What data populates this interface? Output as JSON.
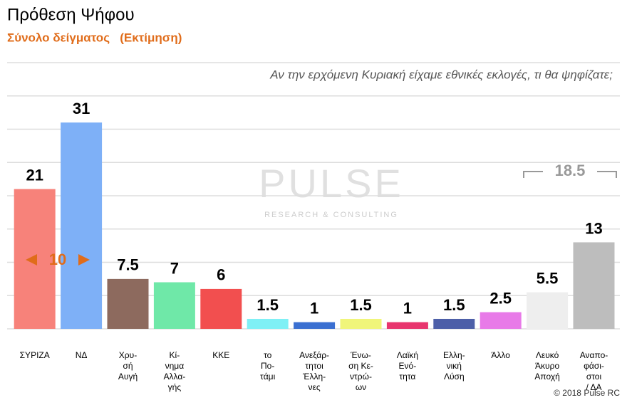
{
  "chart_data": {
    "type": "bar",
    "title": "Πρόθεση Ψήφου",
    "subtitle": "Σύνολο δείγματος   (Εκτίμηση)",
    "question": "Αν την ερχόμενη Κυριακή είχαμε εθνικές εκλογές, τι θα ψηφίζατε;",
    "categories": [
      "ΣΥΡΙΖΑ",
      "ΝΔ",
      "Χρυ-\nσή\nΑυγή",
      "Κί-\nνημα\nΑλλα-\nγής",
      "ΚΚΕ",
      "το\nΠο-\nτάμι",
      "Ανεξάρ-\nτητοι\nΈλλη-\nνες",
      "Ένω-\nση Κε-\nντρώ-\nων",
      "Λαϊκή\nΕνό-\nτητα",
      "Ελλη-\nνική\nΛύση",
      "Άλλο",
      "Λευκό\nΆκυρο\nΑποχή",
      "Αναπο-\nφάσι-\nστοι\n/ ΔΑ"
    ],
    "values": [
      21,
      31,
      7.5,
      7,
      6,
      1.5,
      1,
      1.5,
      1,
      1.5,
      2.5,
      5.5,
      13
    ],
    "colors": [
      "#f7827a",
      "#7eb0f7",
      "#8d6a5e",
      "#6fe8a8",
      "#f24f4f",
      "#7ff0f5",
      "#3a6fd1",
      "#f0f57a",
      "#e8356e",
      "#4d5fa8",
      "#e87ae8",
      "#eeeeee",
      "#bdbdbd"
    ],
    "ylim": [
      0,
      40
    ],
    "yticks": [
      0,
      5,
      10,
      15,
      20,
      25,
      30,
      35,
      40
    ],
    "grid": true,
    "lead_annotation": "10",
    "combined_annotation": "18.5",
    "watermark": "PULSE",
    "watermark_sub": "RESEARCH & CONSULTING",
    "copyright": "© 2018 Pulse RC"
  }
}
